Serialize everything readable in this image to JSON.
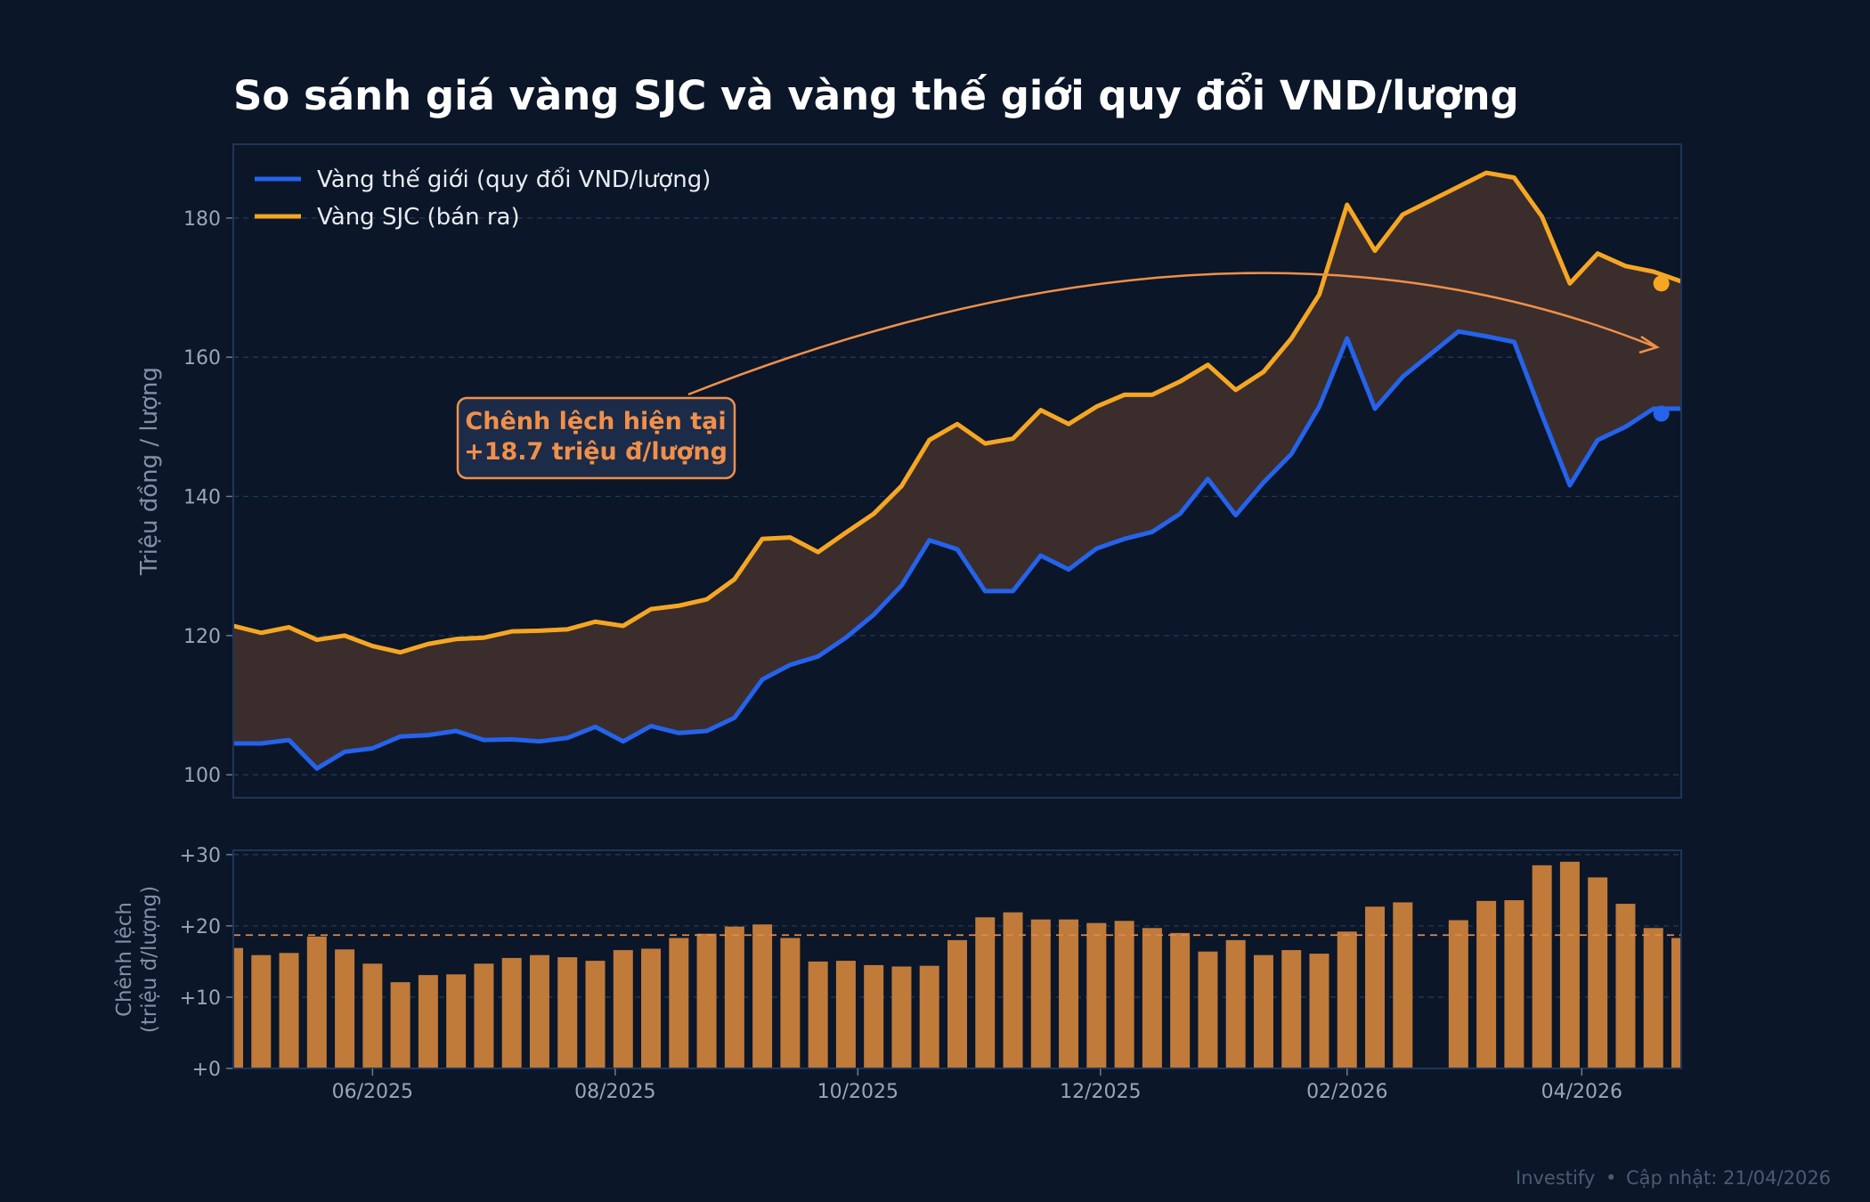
{
  "title": "So sánh giá vàng SJC và vàng thế giới quy đổi VND/lượng",
  "footer": {
    "brand": "Investify",
    "separator": "•",
    "updated": "Cập nhật: 21/04/2026"
  },
  "colors": {
    "background": "#0b1628",
    "world": "#2563eb",
    "sjc": "#f5a623",
    "spread_fill": "#3a2d2c",
    "bars": "#c07a3a",
    "annotation": "#f0904a",
    "grid": "#20385a"
  },
  "chart_data": [
    {
      "type": "line",
      "ylabel": "Triệu đồng / lượng",
      "ylim": [
        96.7,
        190.6
      ],
      "xlim": [
        "2025-04-27",
        "2026-04-26"
      ],
      "yticks": [
        100,
        120,
        140,
        160,
        180
      ],
      "grid": true,
      "legend_position": "top-left",
      "fill_between": true,
      "x_start": "2025-04-27",
      "x_step_days": 7,
      "series": [
        {
          "name": "Vàng thế giới (quy đổi VND/lượng)",
          "color": "#2563eb",
          "values": [
            104.5,
            104.5,
            105.0,
            100.9,
            103.3,
            103.8,
            105.5,
            105.7,
            106.3,
            105.0,
            105.1,
            104.8,
            105.3,
            106.9,
            104.8,
            107.0,
            106.0,
            106.3,
            108.2,
            113.7,
            115.8,
            117.0,
            119.7,
            123.0,
            127.2,
            133.7,
            132.4,
            126.4,
            126.4,
            131.5,
            129.5,
            132.5,
            133.9,
            134.9,
            137.5,
            142.5,
            137.3,
            142.0,
            146.1,
            152.9,
            162.7,
            152.6,
            157.2,
            null,
            163.7,
            163.0,
            162.2,
            151.7,
            141.6,
            148.1,
            150.0,
            152.6,
            152.6
          ]
        },
        {
          "name": "Vàng SJC (bán ra)",
          "color": "#f5a623",
          "values": [
            121.4,
            120.4,
            121.2,
            119.4,
            120.0,
            118.5,
            117.6,
            118.8,
            119.5,
            119.7,
            120.6,
            120.7,
            120.9,
            122.0,
            121.4,
            123.8,
            124.3,
            125.2,
            128.1,
            133.9,
            134.1,
            132.0,
            134.8,
            137.5,
            141.5,
            148.1,
            150.4,
            147.6,
            148.3,
            152.4,
            150.4,
            152.9,
            154.6,
            154.6,
            156.5,
            158.9,
            155.3,
            157.9,
            162.7,
            169.0,
            181.9,
            175.3,
            180.5,
            null,
            184.5,
            186.5,
            185.8,
            180.2,
            170.6,
            174.9,
            173.1,
            172.3,
            170.9
          ]
        }
      ],
      "latest_markers": {
        "date": "2026-04-21",
        "world": 151.9,
        "sjc": 170.6
      },
      "annotation": {
        "line1": "Chênh lệch hiện tại",
        "line2": "+18.7 triệu đ/lượng",
        "value": 18.7
      }
    },
    {
      "type": "bar",
      "ylabel_line1": "Chênh lệch",
      "ylabel_line2": "(triệu đ/lượng)",
      "ylim": [
        0,
        30.6
      ],
      "yticks": [
        "+0",
        "+10",
        "+20",
        "+30"
      ],
      "ytick_values": [
        0,
        10,
        20,
        30
      ],
      "reference_line": 18.7,
      "xticks": [
        "06/2025",
        "08/2025",
        "10/2025",
        "12/2025",
        "02/2026",
        "04/2026"
      ],
      "xtick_dates": [
        "2025-06-01",
        "2025-08-01",
        "2025-10-01",
        "2025-12-01",
        "2026-02-01",
        "2026-04-01"
      ]
    }
  ]
}
